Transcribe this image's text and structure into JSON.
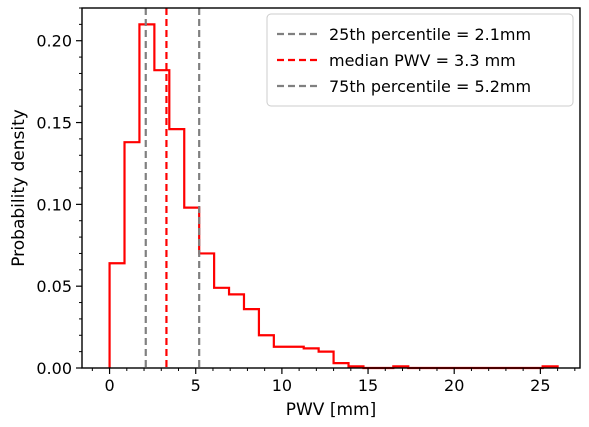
{
  "chart_data": {
    "type": "histogram",
    "xlabel": "PWV [mm]",
    "ylabel": "Probability density",
    "xlim": [
      -1.6,
      27.3
    ],
    "ylim": [
      0,
      0.22
    ],
    "x_ticks": [
      0,
      5,
      10,
      15,
      20,
      25
    ],
    "x_tick_labels": [
      "0",
      "5",
      "10",
      "15",
      "20",
      "25"
    ],
    "y_ticks": [
      0.0,
      0.05,
      0.1,
      0.15,
      0.2
    ],
    "y_tick_labels": [
      "0.00",
      "0.05",
      "0.10",
      "0.15",
      "0.20"
    ],
    "histogram": {
      "color": "#ff0000",
      "bin_edges": [
        0,
        0.867,
        1.733,
        2.6,
        3.467,
        4.333,
        5.2,
        6.067,
        6.933,
        7.8,
        8.667,
        9.533,
        10.4,
        11.267,
        12.133,
        13.0,
        13.867,
        14.733,
        15.6,
        16.467,
        17.333,
        18.2,
        19.067,
        19.933,
        20.8,
        21.667,
        22.533,
        23.4,
        24.267,
        25.133,
        26.0
      ],
      "density": [
        0.064,
        0.138,
        0.21,
        0.182,
        0.146,
        0.098,
        0.07,
        0.049,
        0.045,
        0.036,
        0.02,
        0.013,
        0.013,
        0.012,
        0.01,
        0.003,
        0.001,
        0.0,
        0.0,
        0.001,
        0.0,
        0.0,
        0.0,
        0.0,
        0.0,
        0.0,
        0.0,
        0.0,
        0.0,
        0.001
      ]
    },
    "vlines": [
      {
        "x": 2.1,
        "color": "#808080",
        "label": "25th percentile = 2.1mm"
      },
      {
        "x": 3.3,
        "color": "#ff0000",
        "label": "median PWV = 3.3 mm"
      },
      {
        "x": 5.2,
        "color": "#808080",
        "label": "75th percentile = 5.2mm"
      }
    ],
    "legend_position": "top-right",
    "grid": false
  }
}
